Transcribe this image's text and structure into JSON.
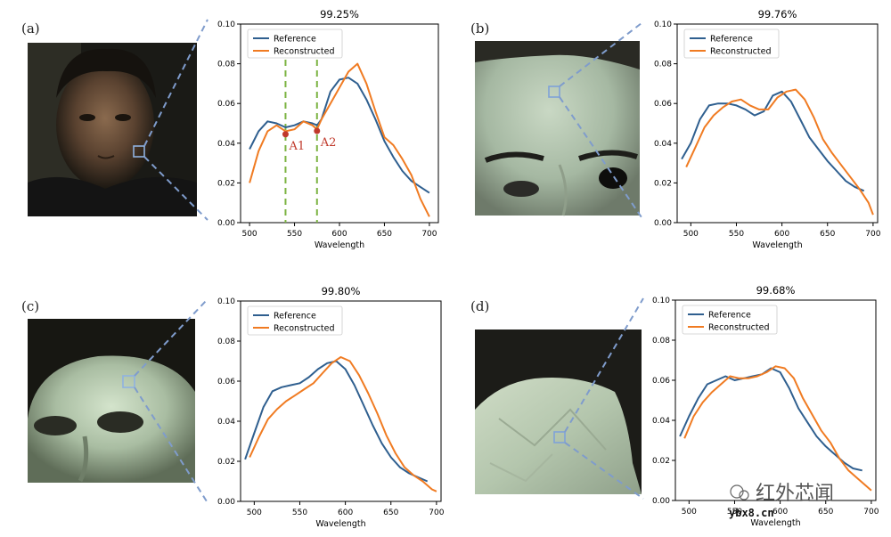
{
  "panels": [
    {
      "label": "(a)",
      "photo": "face-photo",
      "title": "99.25%"
    },
    {
      "label": "(b)",
      "photo": "forehead-photo",
      "title": "99.76%"
    },
    {
      "label": "(c)",
      "photo": "mask-photo",
      "title": "99.80%"
    },
    {
      "label": "(d)",
      "photo": "paper-photo",
      "title": "99.68%"
    }
  ],
  "watermark": {
    "text": "红外芯闻",
    "site": "ybx8.cn"
  },
  "colors": {
    "reference": "#2f5f8f",
    "reconstructed": "#f07b22",
    "marker": "#c0392b",
    "guide": "#7cb342",
    "zoom": "#7f9ccc"
  },
  "chart_data": [
    {
      "type": "line",
      "title": "99.25%",
      "xlabel": "Wavelength",
      "ylabel": "",
      "xlim": [
        490,
        710
      ],
      "ylim": [
        0,
        0.1
      ],
      "xticks": [
        500,
        550,
        600,
        650,
        700
      ],
      "yticks": [
        "0.00",
        "0.02",
        "0.04",
        "0.06",
        "0.08",
        "0.10"
      ],
      "grid": false,
      "legend": "top-left",
      "series": [
        {
          "name": "Reference",
          "x": [
            500,
            510,
            520,
            530,
            540,
            550,
            560,
            570,
            575,
            580,
            590,
            600,
            610,
            620,
            630,
            640,
            650,
            660,
            670,
            680,
            690,
            700
          ],
          "y": [
            0.037,
            0.046,
            0.051,
            0.05,
            0.048,
            0.049,
            0.051,
            0.05,
            0.049,
            0.052,
            0.066,
            0.072,
            0.073,
            0.07,
            0.062,
            0.052,
            0.041,
            0.033,
            0.026,
            0.021,
            0.018,
            0.015
          ]
        },
        {
          "name": "Reconstructed",
          "x": [
            500,
            510,
            520,
            530,
            540,
            550,
            560,
            570,
            575,
            580,
            590,
            600,
            610,
            620,
            630,
            640,
            650,
            660,
            670,
            680,
            690,
            700
          ],
          "y": [
            0.02,
            0.036,
            0.046,
            0.049,
            0.046,
            0.047,
            0.051,
            0.049,
            0.047,
            0.052,
            0.06,
            0.068,
            0.076,
            0.08,
            0.07,
            0.056,
            0.043,
            0.039,
            0.032,
            0.024,
            0.012,
            0.003
          ]
        }
      ],
      "annotations": [
        {
          "text": "A1",
          "x": 540,
          "y": 0.0445
        },
        {
          "text": "A2",
          "x": 575,
          "y": 0.0462
        }
      ],
      "guides": [
        540,
        575
      ]
    },
    {
      "type": "line",
      "title": "99.76%",
      "xlabel": "Wavelength",
      "ylabel": "",
      "xlim": [
        485,
        705
      ],
      "ylim": [
        0,
        0.1
      ],
      "xticks": [
        500,
        550,
        600,
        650,
        700
      ],
      "yticks": [
        "0.00",
        "0.02",
        "0.04",
        "0.06",
        "0.08",
        "0.10"
      ],
      "grid": false,
      "legend": "top-left",
      "series": [
        {
          "name": "Reference",
          "x": [
            490,
            500,
            510,
            520,
            530,
            540,
            550,
            560,
            570,
            580,
            590,
            600,
            610,
            620,
            630,
            640,
            650,
            660,
            670,
            680,
            690
          ],
          "y": [
            0.032,
            0.04,
            0.052,
            0.059,
            0.06,
            0.06,
            0.059,
            0.057,
            0.054,
            0.056,
            0.064,
            0.066,
            0.061,
            0.052,
            0.043,
            0.037,
            0.031,
            0.026,
            0.021,
            0.018,
            0.016
          ]
        },
        {
          "name": "Reconstructed",
          "x": [
            495,
            505,
            515,
            525,
            535,
            545,
            555,
            565,
            575,
            585,
            595,
            605,
            615,
            625,
            635,
            645,
            655,
            665,
            675,
            685,
            695,
            700
          ],
          "y": [
            0.028,
            0.038,
            0.048,
            0.054,
            0.058,
            0.061,
            0.062,
            0.059,
            0.057,
            0.057,
            0.063,
            0.066,
            0.067,
            0.062,
            0.053,
            0.042,
            0.035,
            0.029,
            0.023,
            0.017,
            0.01,
            0.004
          ]
        }
      ]
    },
    {
      "type": "line",
      "title": "99.80%",
      "xlabel": "Wavelength",
      "ylabel": "",
      "xlim": [
        485,
        705
      ],
      "ylim": [
        0,
        0.1
      ],
      "xticks": [
        500,
        550,
        600,
        650,
        700
      ],
      "yticks": [
        "0.00",
        "0.02",
        "0.04",
        "0.06",
        "0.08",
        "0.10"
      ],
      "grid": false,
      "legend": "top-left",
      "series": [
        {
          "name": "Reference",
          "x": [
            490,
            500,
            510,
            520,
            530,
            540,
            550,
            560,
            570,
            580,
            590,
            600,
            610,
            620,
            630,
            640,
            650,
            660,
            670,
            680,
            690
          ],
          "y": [
            0.021,
            0.034,
            0.047,
            0.055,
            0.057,
            0.058,
            0.059,
            0.062,
            0.066,
            0.069,
            0.07,
            0.066,
            0.058,
            0.048,
            0.038,
            0.029,
            0.022,
            0.017,
            0.014,
            0.012,
            0.01
          ]
        },
        {
          "name": "Reconstructed",
          "x": [
            495,
            505,
            515,
            525,
            535,
            545,
            555,
            565,
            575,
            585,
            595,
            605,
            615,
            625,
            635,
            645,
            655,
            665,
            675,
            685,
            695,
            700
          ],
          "y": [
            0.022,
            0.032,
            0.041,
            0.046,
            0.05,
            0.053,
            0.056,
            0.059,
            0.064,
            0.069,
            0.072,
            0.07,
            0.063,
            0.054,
            0.044,
            0.033,
            0.024,
            0.017,
            0.013,
            0.01,
            0.006,
            0.005
          ]
        }
      ]
    },
    {
      "type": "line",
      "title": "99.68%",
      "xlabel": "Wavelength",
      "ylabel": "",
      "xlim": [
        485,
        705
      ],
      "ylim": [
        0,
        0.1
      ],
      "xticks": [
        500,
        550,
        600,
        650,
        700
      ],
      "yticks": [
        "0.00",
        "0.02",
        "0.04",
        "0.06",
        "0.08",
        "0.10"
      ],
      "grid": false,
      "legend": "top-left",
      "series": [
        {
          "name": "Reference",
          "x": [
            490,
            500,
            510,
            520,
            530,
            540,
            550,
            560,
            570,
            580,
            590,
            600,
            610,
            620,
            630,
            640,
            650,
            660,
            670,
            680,
            690
          ],
          "y": [
            0.032,
            0.042,
            0.051,
            0.058,
            0.06,
            0.062,
            0.06,
            0.061,
            0.062,
            0.063,
            0.066,
            0.064,
            0.056,
            0.046,
            0.039,
            0.032,
            0.027,
            0.023,
            0.019,
            0.016,
            0.015
          ]
        },
        {
          "name": "Reconstructed",
          "x": [
            495,
            505,
            515,
            525,
            535,
            545,
            555,
            565,
            575,
            585,
            595,
            605,
            615,
            625,
            635,
            645,
            655,
            665,
            675,
            685,
            695,
            700
          ],
          "y": [
            0.031,
            0.042,
            0.049,
            0.054,
            0.058,
            0.062,
            0.061,
            0.061,
            0.062,
            0.064,
            0.067,
            0.066,
            0.061,
            0.051,
            0.043,
            0.035,
            0.029,
            0.021,
            0.015,
            0.011,
            0.007,
            0.005
          ]
        }
      ]
    }
  ]
}
